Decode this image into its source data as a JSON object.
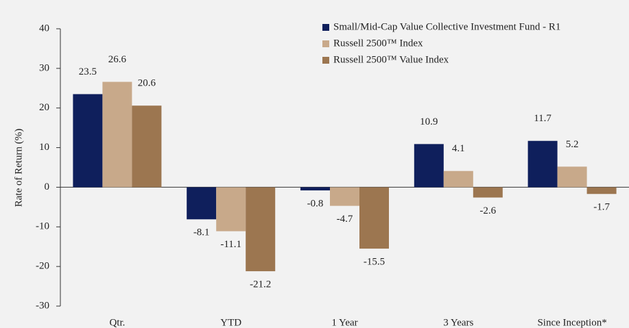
{
  "chart_data": {
    "type": "bar",
    "y_axis_label": "Rate of Return (%)",
    "categories": [
      "Qtr.",
      "YTD",
      "1 Year",
      "3 Years",
      "Since Inception*"
    ],
    "series": [
      {
        "name": "Small/Mid-Cap Value Collective Investment Fund - R1",
        "color": "#0f1f5c",
        "values": [
          23.5,
          -8.1,
          -0.8,
          10.9,
          11.7
        ]
      },
      {
        "name": "Russell 2500™ Index",
        "color": "#c8a98a",
        "values": [
          26.6,
          -11.1,
          -4.7,
          4.1,
          5.2
        ]
      },
      {
        "name": "Russell 2500™ Value Index",
        "color": "#9c7650",
        "values": [
          20.6,
          -21.2,
          -15.5,
          -2.6,
          -1.7
        ]
      }
    ],
    "ylim": [
      -30,
      40
    ],
    "yticks": [
      -30,
      -20,
      -10,
      0,
      10,
      20,
      30,
      40
    ],
    "grid": false,
    "legend": "top-right"
  }
}
